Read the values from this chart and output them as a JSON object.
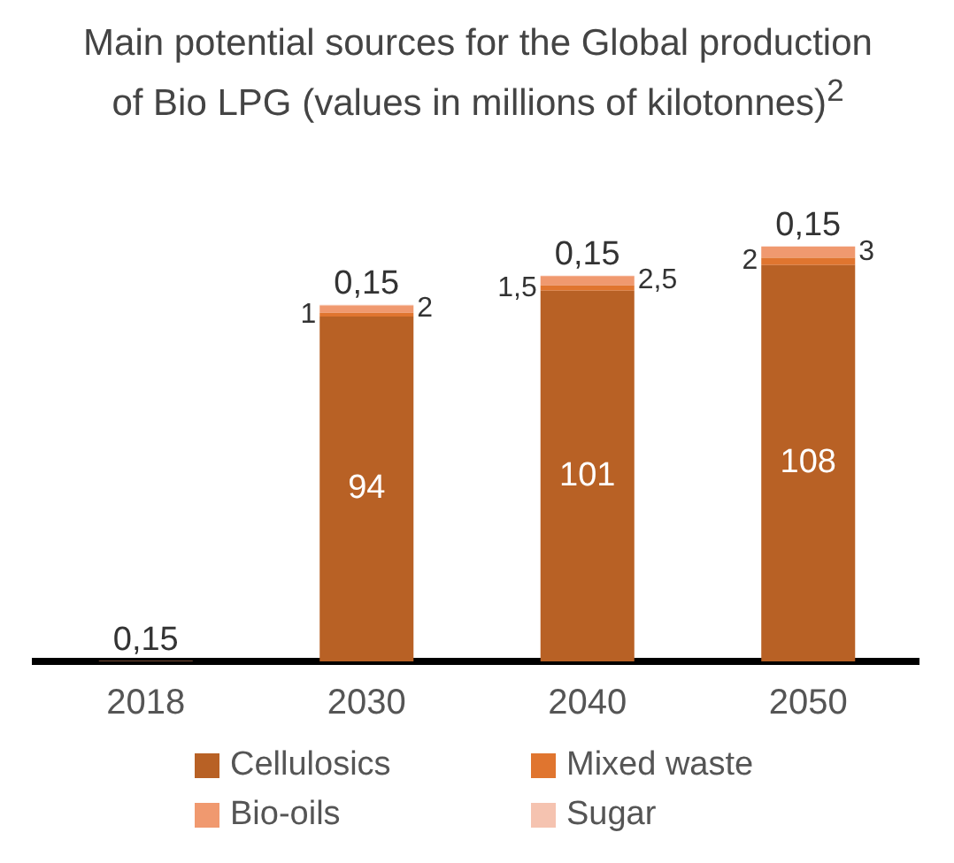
{
  "chart_data": {
    "type": "bar",
    "title": "Main potential sources for the Global production of Bio LPG  (values in millions of kilotonnes)$^{2}$",
    "categories": [
      "2018",
      "2030",
      "2040",
      "2050"
    ],
    "stacked": true,
    "tick_labels": "x",
    "grid": false,
    "legend": "bottom",
    "series": [
      {
        "name": "Cellulosics",
        "color": "#b86125",
        "values": [
          null,
          94,
          101,
          108
        ],
        "value_labels": [
          null,
          "94",
          "101",
          "108"
        ]
      },
      {
        "name": "Mixed waste",
        "color": "#e0752f",
        "values": [
          null,
          1,
          1.5,
          2
        ],
        "value_labels": [
          null,
          "1",
          "1,5",
          "2"
        ]
      },
      {
        "name": "Bio-oils",
        "color": "#f0996f",
        "values": [
          0.15,
          2,
          2.5,
          3
        ],
        "value_labels": [
          "0,15",
          "2",
          "2,5",
          "3"
        ]
      },
      {
        "name": "Sugar",
        "color": "#f5c3b0",
        "values": [
          null,
          0.15,
          0.15,
          0.15
        ],
        "value_labels": [
          null,
          "0,15",
          "0,15",
          "0,15"
        ]
      }
    ]
  }
}
